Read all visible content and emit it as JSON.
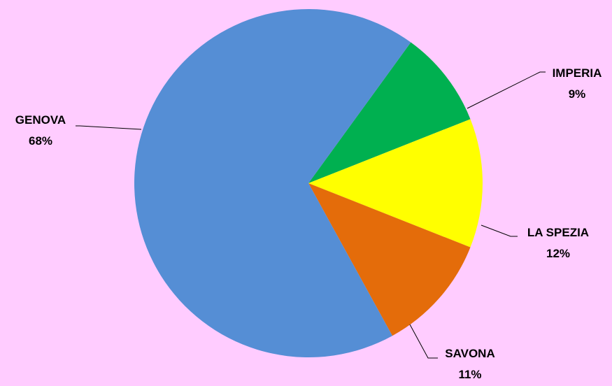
{
  "chart_data": {
    "type": "pie",
    "title": "",
    "legend": "none",
    "slices": [
      {
        "label": "IMPERIA",
        "value": 9,
        "value_label": "9%",
        "color": "#00b050"
      },
      {
        "label": "LA SPEZIA",
        "value": 12,
        "value_label": "12%",
        "color": "#ffff00"
      },
      {
        "label": "SAVONA",
        "value": 11,
        "value_label": "11%",
        "color": "#e46c0a"
      },
      {
        "label": "GENOVA",
        "value": 68,
        "value_label": "68%",
        "color": "#558ed5"
      }
    ]
  },
  "colors": {
    "background": "#ffccff",
    "leader_line": "#000000"
  }
}
